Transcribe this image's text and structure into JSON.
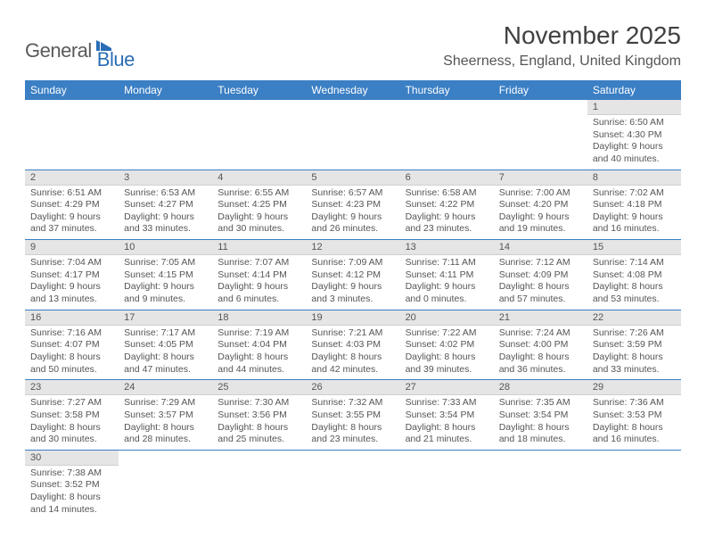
{
  "logo": {
    "general": "General",
    "blue": "Blue"
  },
  "title": "November 2025",
  "location": "Sheerness, England, United Kingdom",
  "colors": {
    "header_bg": "#3b7fc4",
    "header_fg": "#ffffff",
    "daynum_bg": "#e5e5e5",
    "rule": "#3b7fc4",
    "text": "#555555",
    "logo_gray": "#5a5a5a",
    "logo_blue": "#2a6db5"
  },
  "weekdays": [
    "Sunday",
    "Monday",
    "Tuesday",
    "Wednesday",
    "Thursday",
    "Friday",
    "Saturday"
  ],
  "weeks": [
    [
      null,
      null,
      null,
      null,
      null,
      null,
      {
        "n": "1",
        "sr": "6:50 AM",
        "ss": "4:30 PM",
        "dl": "9 hours and 40 minutes."
      }
    ],
    [
      {
        "n": "2",
        "sr": "6:51 AM",
        "ss": "4:29 PM",
        "dl": "9 hours and 37 minutes."
      },
      {
        "n": "3",
        "sr": "6:53 AM",
        "ss": "4:27 PM",
        "dl": "9 hours and 33 minutes."
      },
      {
        "n": "4",
        "sr": "6:55 AM",
        "ss": "4:25 PM",
        "dl": "9 hours and 30 minutes."
      },
      {
        "n": "5",
        "sr": "6:57 AM",
        "ss": "4:23 PM",
        "dl": "9 hours and 26 minutes."
      },
      {
        "n": "6",
        "sr": "6:58 AM",
        "ss": "4:22 PM",
        "dl": "9 hours and 23 minutes."
      },
      {
        "n": "7",
        "sr": "7:00 AM",
        "ss": "4:20 PM",
        "dl": "9 hours and 19 minutes."
      },
      {
        "n": "8",
        "sr": "7:02 AM",
        "ss": "4:18 PM",
        "dl": "9 hours and 16 minutes."
      }
    ],
    [
      {
        "n": "9",
        "sr": "7:04 AM",
        "ss": "4:17 PM",
        "dl": "9 hours and 13 minutes."
      },
      {
        "n": "10",
        "sr": "7:05 AM",
        "ss": "4:15 PM",
        "dl": "9 hours and 9 minutes."
      },
      {
        "n": "11",
        "sr": "7:07 AM",
        "ss": "4:14 PM",
        "dl": "9 hours and 6 minutes."
      },
      {
        "n": "12",
        "sr": "7:09 AM",
        "ss": "4:12 PM",
        "dl": "9 hours and 3 minutes."
      },
      {
        "n": "13",
        "sr": "7:11 AM",
        "ss": "4:11 PM",
        "dl": "9 hours and 0 minutes."
      },
      {
        "n": "14",
        "sr": "7:12 AM",
        "ss": "4:09 PM",
        "dl": "8 hours and 57 minutes."
      },
      {
        "n": "15",
        "sr": "7:14 AM",
        "ss": "4:08 PM",
        "dl": "8 hours and 53 minutes."
      }
    ],
    [
      {
        "n": "16",
        "sr": "7:16 AM",
        "ss": "4:07 PM",
        "dl": "8 hours and 50 minutes."
      },
      {
        "n": "17",
        "sr": "7:17 AM",
        "ss": "4:05 PM",
        "dl": "8 hours and 47 minutes."
      },
      {
        "n": "18",
        "sr": "7:19 AM",
        "ss": "4:04 PM",
        "dl": "8 hours and 44 minutes."
      },
      {
        "n": "19",
        "sr": "7:21 AM",
        "ss": "4:03 PM",
        "dl": "8 hours and 42 minutes."
      },
      {
        "n": "20",
        "sr": "7:22 AM",
        "ss": "4:02 PM",
        "dl": "8 hours and 39 minutes."
      },
      {
        "n": "21",
        "sr": "7:24 AM",
        "ss": "4:00 PM",
        "dl": "8 hours and 36 minutes."
      },
      {
        "n": "22",
        "sr": "7:26 AM",
        "ss": "3:59 PM",
        "dl": "8 hours and 33 minutes."
      }
    ],
    [
      {
        "n": "23",
        "sr": "7:27 AM",
        "ss": "3:58 PM",
        "dl": "8 hours and 30 minutes."
      },
      {
        "n": "24",
        "sr": "7:29 AM",
        "ss": "3:57 PM",
        "dl": "8 hours and 28 minutes."
      },
      {
        "n": "25",
        "sr": "7:30 AM",
        "ss": "3:56 PM",
        "dl": "8 hours and 25 minutes."
      },
      {
        "n": "26",
        "sr": "7:32 AM",
        "ss": "3:55 PM",
        "dl": "8 hours and 23 minutes."
      },
      {
        "n": "27",
        "sr": "7:33 AM",
        "ss": "3:54 PM",
        "dl": "8 hours and 21 minutes."
      },
      {
        "n": "28",
        "sr": "7:35 AM",
        "ss": "3:54 PM",
        "dl": "8 hours and 18 minutes."
      },
      {
        "n": "29",
        "sr": "7:36 AM",
        "ss": "3:53 PM",
        "dl": "8 hours and 16 minutes."
      }
    ],
    [
      {
        "n": "30",
        "sr": "7:38 AM",
        "ss": "3:52 PM",
        "dl": "8 hours and 14 minutes."
      },
      null,
      null,
      null,
      null,
      null,
      null
    ]
  ],
  "labels": {
    "sunrise": "Sunrise: ",
    "sunset": "Sunset: ",
    "daylight": "Daylight: "
  }
}
